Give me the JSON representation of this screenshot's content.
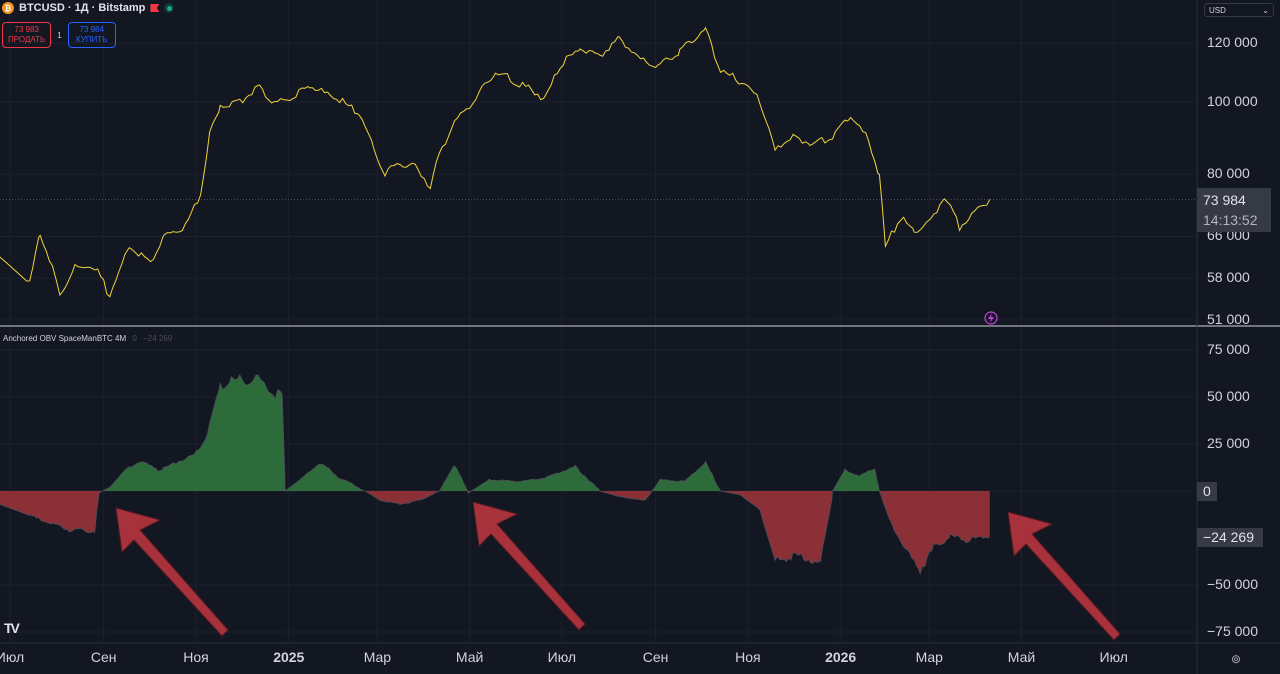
{
  "header": {
    "symbol_title": "BTCUSD · 1Д · Bitstamp",
    "coin_glyph": "₿"
  },
  "trade": {
    "sell_price": "73 983",
    "sell_label": "ПРОДАТЬ",
    "spread": "1",
    "buy_price": "73 984",
    "buy_label": "КУПИТЬ"
  },
  "currency": {
    "value": "USD"
  },
  "indicator": {
    "name": "Anchored OBV SpaceManBTC 4M",
    "value1": "0",
    "value2": "−24 269"
  },
  "price_tag": {
    "price": "73 984",
    "countdown": "14:13:52"
  },
  "obv_tags": {
    "zero": "0",
    "current": "−24 269"
  },
  "colors": {
    "bg": "#131722",
    "price_line": "#f0d43a",
    "obv_up": "#2e6b3a",
    "obv_down": "#8a3036",
    "arrow": "#a8323c"
  },
  "chart_data": [
    {
      "type": "line",
      "title": "BTCUSD · 1Д · Bitstamp",
      "x_unit": "days since 2024-07-01",
      "y_scale": "log",
      "ylim": [
        49000,
        135000
      ],
      "y_ticks": [
        "120 000",
        "100 000",
        "80 000",
        "66 000",
        "58 000",
        "51 000"
      ],
      "y_tick_values": [
        120000,
        100000,
        80000,
        66000,
        58000,
        51000
      ],
      "points": [
        [
          -7,
          62000
        ],
        [
          13,
          57000
        ],
        [
          20,
          67000
        ],
        [
          33,
          55000
        ],
        [
          43,
          60000
        ],
        [
          56,
          60000
        ],
        [
          66,
          55000
        ],
        [
          79,
          64000
        ],
        [
          93,
          61000
        ],
        [
          102,
          66000
        ],
        [
          116,
          68000
        ],
        [
          126,
          75000
        ],
        [
          132,
          90000
        ],
        [
          139,
          99000
        ],
        [
          152,
          100000
        ],
        [
          165,
          105000
        ],
        [
          175,
          99000
        ],
        [
          189,
          102000
        ],
        [
          198,
          105000
        ],
        [
          212,
          102000
        ],
        [
          231,
          97000
        ],
        [
          241,
          86000
        ],
        [
          248,
          80000
        ],
        [
          258,
          83000
        ],
        [
          268,
          82000
        ],
        [
          278,
          77000
        ],
        [
          284,
          85000
        ],
        [
          294,
          94000
        ],
        [
          308,
          101000
        ],
        [
          321,
          110000
        ],
        [
          337,
          106000
        ],
        [
          354,
          101000
        ],
        [
          364,
          112000
        ],
        [
          377,
          118000
        ],
        [
          390,
          115000
        ],
        [
          403,
          122000
        ],
        [
          417,
          114000
        ],
        [
          430,
          112000
        ],
        [
          443,
          117000
        ],
        [
          460,
          125000
        ],
        [
          470,
          110000
        ],
        [
          486,
          106000
        ],
        [
          496,
          100000
        ],
        [
          506,
          86000
        ],
        [
          516,
          90000
        ],
        [
          529,
          88000
        ],
        [
          542,
          89000
        ],
        [
          556,
          96000
        ],
        [
          566,
          90000
        ],
        [
          575,
          80000
        ],
        [
          579,
          64000
        ],
        [
          589,
          70000
        ],
        [
          598,
          67000
        ],
        [
          609,
          69000
        ],
        [
          618,
          75000
        ],
        [
          628,
          68000
        ],
        [
          638,
          71000
        ],
        [
          648,
          74000
        ]
      ],
      "last_price": 73984
    },
    {
      "type": "area",
      "title": "Anchored OBV SpaceManBTC 4M",
      "x_unit": "days since 2024-07-01",
      "ylim": [
        -85000,
        80000
      ],
      "y_ticks": [
        "75 000",
        "50 000",
        "25 000",
        "0",
        "−50 000",
        "−75 000"
      ],
      "y_tick_values": [
        75000,
        50000,
        25000,
        0,
        -50000,
        -75000
      ],
      "points": [
        [
          -7,
          -7000
        ],
        [
          13,
          -13000
        ],
        [
          30,
          -18000
        ],
        [
          40,
          -21000
        ],
        [
          56,
          -21000
        ],
        [
          59,
          -1000
        ],
        [
          66,
          2000
        ],
        [
          76,
          11000
        ],
        [
          86,
          16000
        ],
        [
          99,
          11000
        ],
        [
          112,
          16000
        ],
        [
          122,
          19000
        ],
        [
          129,
          27000
        ],
        [
          139,
          56000
        ],
        [
          152,
          59000
        ],
        [
          165,
          59000
        ],
        [
          180,
          49000
        ],
        [
          182,
          0
        ],
        [
          192,
          6000
        ],
        [
          205,
          15000
        ],
        [
          218,
          7000
        ],
        [
          235,
          0
        ],
        [
          245,
          -5000
        ],
        [
          258,
          -7000
        ],
        [
          271,
          -5000
        ],
        [
          284,
          0
        ],
        [
          294,
          14000
        ],
        [
          303,
          -1000
        ],
        [
          317,
          6000
        ],
        [
          337,
          5000
        ],
        [
          354,
          7000
        ],
        [
          374,
          13000
        ],
        [
          390,
          0
        ],
        [
          403,
          -3000
        ],
        [
          420,
          -5000
        ],
        [
          430,
          6000
        ],
        [
          446,
          5000
        ],
        [
          460,
          15000
        ],
        [
          470,
          0
        ],
        [
          483,
          -2000
        ],
        [
          496,
          -10000
        ],
        [
          506,
          -37000
        ],
        [
          522,
          -34000
        ],
        [
          536,
          -39000
        ],
        [
          544,
          0
        ],
        [
          552,
          11000
        ],
        [
          562,
          8000
        ],
        [
          572,
          12000
        ],
        [
          575,
          0
        ],
        [
          582,
          -16000
        ],
        [
          592,
          -31000
        ],
        [
          602,
          -42000
        ],
        [
          612,
          -29000
        ],
        [
          622,
          -24000
        ],
        [
          632,
          -26000
        ],
        [
          645,
          -24000
        ],
        [
          648,
          -24269
        ]
      ]
    }
  ],
  "time_axis": [
    "Июл",
    "Сен",
    "Ноя",
    "2025",
    "Мар",
    "Май",
    "Июл",
    "Сен",
    "Ноя",
    "2026",
    "Мар",
    "Май",
    "Июл"
  ],
  "time_axis_days": [
    0,
    62,
    123,
    184,
    243,
    304,
    365,
    427,
    488,
    549,
    608,
    669,
    730
  ],
  "logo": "TV"
}
